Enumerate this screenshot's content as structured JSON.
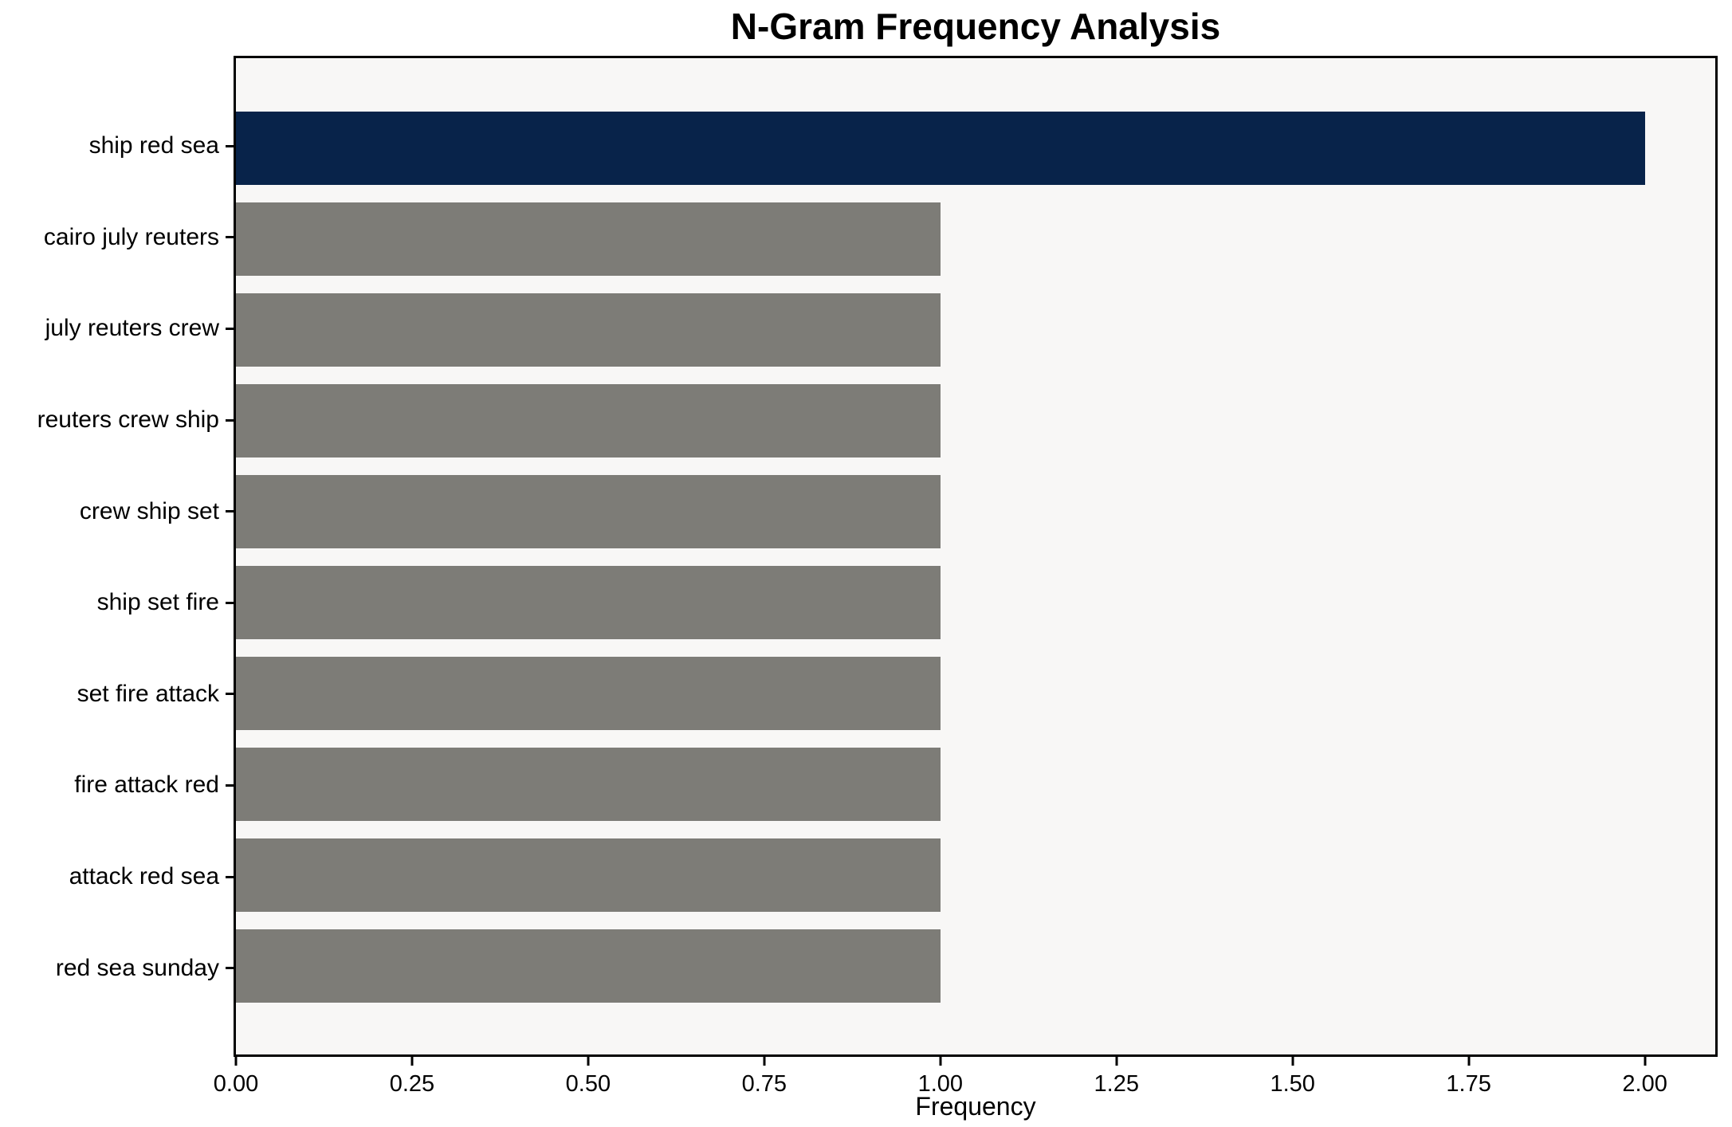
{
  "title": "N-Gram Frequency Analysis",
  "chart_data": {
    "type": "bar",
    "orientation": "horizontal",
    "title": "N-Gram Frequency Analysis",
    "xlabel": "Frequency",
    "ylabel": "",
    "categories": [
      "ship red sea",
      "cairo july reuters",
      "july reuters crew",
      "reuters crew ship",
      "crew ship set",
      "ship set fire",
      "set fire attack",
      "fire attack red",
      "attack red sea",
      "red sea sunday"
    ],
    "values": [
      2,
      1,
      1,
      1,
      1,
      1,
      1,
      1,
      1,
      1
    ],
    "bar_colors": [
      "#08234a",
      "#7d7c77",
      "#7d7c77",
      "#7d7c77",
      "#7d7c77",
      "#7d7c77",
      "#7d7c77",
      "#7d7c77",
      "#7d7c77",
      "#7d7c77"
    ],
    "xlim": [
      0,
      2.1
    ],
    "xticks": [
      "0.00",
      "0.25",
      "0.50",
      "0.75",
      "1.00",
      "1.25",
      "1.50",
      "1.75",
      "2.00"
    ],
    "xtick_values": [
      0,
      0.25,
      0.5,
      0.75,
      1.0,
      1.25,
      1.5,
      1.75,
      2.0
    ],
    "grid": false,
    "legend": null,
    "colors": {
      "highlight_bar": "#08234a",
      "default_bar": "#7d7c77",
      "plot_background": "#f8f7f6",
      "figure_background": "#ffffff",
      "axis_line": "#000000",
      "text": "#000000"
    }
  }
}
